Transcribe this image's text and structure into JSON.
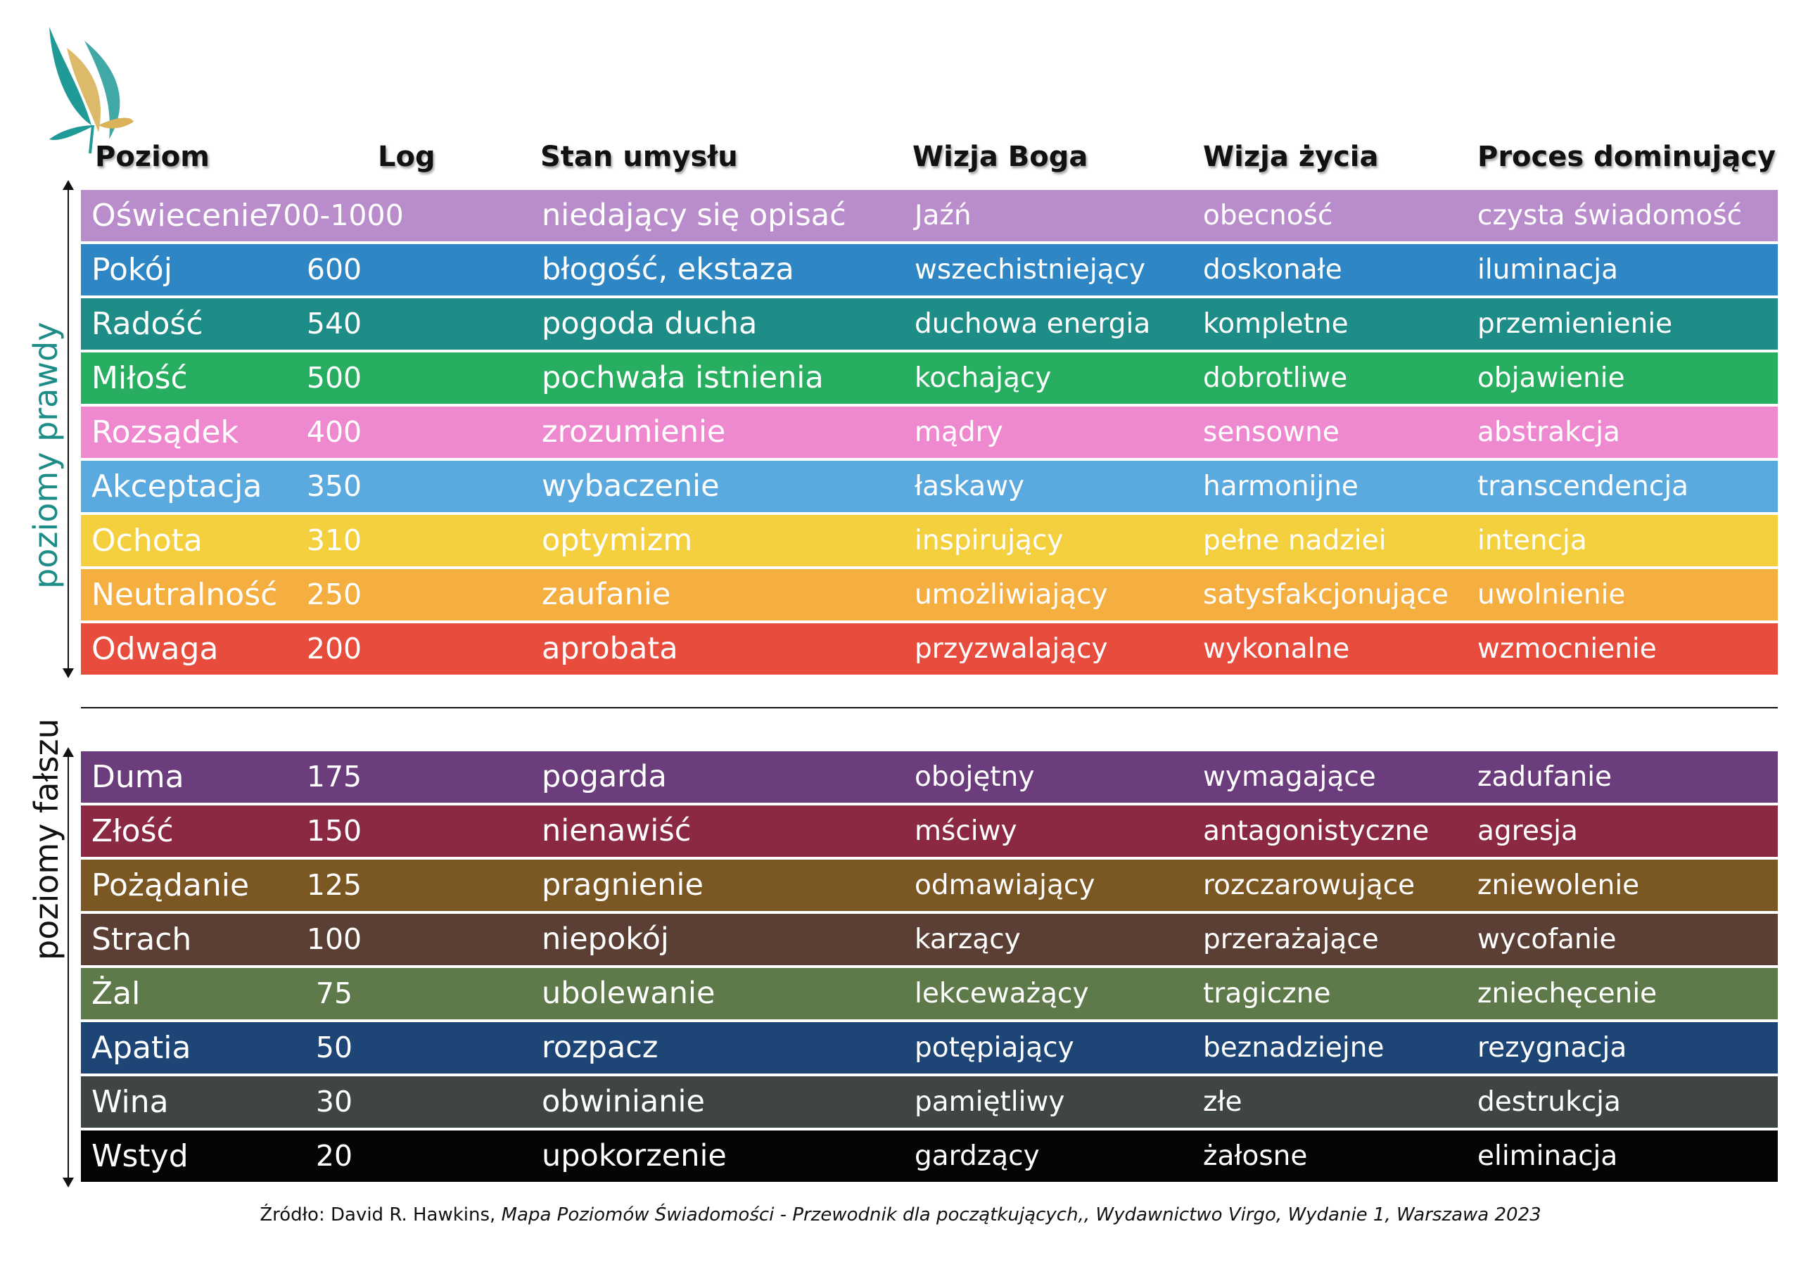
{
  "colors": {
    "truth_label": "#1e8c87",
    "logo_teal": "#1f9a97",
    "logo_gold": "#d9b25a"
  },
  "logo": {
    "icon": "butterfly-logo-icon"
  },
  "headers": [
    "Poziom",
    "Log",
    "Stan umysłu",
    "Wizja Boga",
    "Wizja życia",
    "Proces dominujący"
  ],
  "truth_levels": {
    "label": "poziomy prawdy",
    "rows": [
      {
        "cells": [
          "Oświecenie",
          "700-1000",
          "niedający się opisać",
          "Jaźń",
          "obecność",
          "czysta świadomość"
        ],
        "color": "#b98ccb"
      },
      {
        "cells": [
          "Pokój",
          "600",
          "błogość, ekstaza",
          "wszechistniejący",
          "doskonałe",
          "iluminacja"
        ],
        "color": "#2e86c4"
      },
      {
        "cells": [
          "Radość",
          "540",
          "pogoda ducha",
          "duchowa energia",
          "kompletne",
          "przemienienie"
        ],
        "color": "#1e8c87"
      },
      {
        "cells": [
          "Miłość",
          "500",
          "pochwała istnienia",
          "kochający",
          "dobrotliwe",
          "objawienie"
        ],
        "color": "#27ae60"
      },
      {
        "cells": [
          "Rozsądek",
          "400",
          "zrozumienie",
          "mądry",
          "sensowne",
          "abstrakcja"
        ],
        "color": "#ef89cf"
      },
      {
        "cells": [
          "Akceptacja",
          "350",
          "wybaczenie",
          "łaskawy",
          "harmonijne",
          "transcendencja"
        ],
        "color": "#5aaae0"
      },
      {
        "cells": [
          "Ochota",
          "310",
          "optymizm",
          "inspirujący",
          "pełne nadziei",
          "intencja"
        ],
        "color": "#f4d03f"
      },
      {
        "cells": [
          "Neutralność",
          "250",
          "zaufanie",
          "umożliwiający",
          "satysfakcjonujące",
          "uwolnienie"
        ],
        "color": "#f5ae40"
      },
      {
        "cells": [
          "Odwaga",
          "200",
          "aprobata",
          "przyzwalający",
          "wykonalne",
          "wzmocnienie"
        ],
        "color": "#e74c3c"
      }
    ]
  },
  "false_levels": {
    "label": "poziomy fałszu",
    "rows": [
      {
        "cells": [
          "Duma",
          "175",
          "pogarda",
          "obojętny",
          "wymagające",
          "zadufanie"
        ],
        "color": "#6c3d7d"
      },
      {
        "cells": [
          "Złość",
          "150",
          "nienawiść",
          "mściwy",
          "antagonistyczne",
          "agresja"
        ],
        "color": "#8b2942"
      },
      {
        "cells": [
          "Pożądanie",
          "125",
          "pragnienie",
          "odmawiający",
          "rozczarowujące",
          "zniewolenie"
        ],
        "color": "#7b5723"
      },
      {
        "cells": [
          "Strach",
          "100",
          "niepokój",
          "karzący",
          "przerażające",
          "wycofanie"
        ],
        "color": "#5c3f34"
      },
      {
        "cells": [
          "Żal",
          "75",
          "ubolewanie",
          "lekceważący",
          "tragiczne",
          "zniechęcenie"
        ],
        "color": "#5f7a4a"
      },
      {
        "cells": [
          "Apatia",
          "50",
          "rozpacz",
          "potępiający",
          "beznadziejne",
          "rezygnacja"
        ],
        "color": "#1d4576"
      },
      {
        "cells": [
          "Wina",
          "30",
          "obwinianie",
          "pamiętliwy",
          "złe",
          "destrukcja"
        ],
        "color": "#3f4544"
      },
      {
        "cells": [
          "Wstyd",
          "20",
          "upokorzenie",
          "gardzący",
          "żałosne",
          "eliminacja"
        ],
        "color": "#050505"
      }
    ]
  },
  "source": {
    "prefix": "Źródło: David R. Hawkins, ",
    "title": "Mapa Poziomów Świadomości - Przewodnik dla początkujących,, Wydawnictwo Virgo, Wydanie 1, Warszawa 2023"
  }
}
